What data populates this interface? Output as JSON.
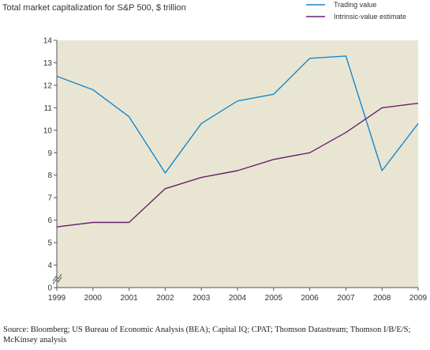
{
  "chart_data": {
    "type": "line",
    "title": "Total market capitalization for S&P 500, $ trillion",
    "x": [
      "1999",
      "2000",
      "2001",
      "2002",
      "2003",
      "2004",
      "2005",
      "2006",
      "2007",
      "2008",
      "2009"
    ],
    "series": [
      {
        "name": "Trading value",
        "color": "#1a86c8",
        "values": [
          12.4,
          11.8,
          10.6,
          8.1,
          10.3,
          11.3,
          11.6,
          13.2,
          13.3,
          8.2,
          10.3
        ]
      },
      {
        "name": "Intrinsic-value estimate",
        "color": "#6b1f6e",
        "values": [
          5.7,
          5.9,
          5.9,
          7.4,
          7.9,
          8.2,
          8.7,
          9.0,
          9.9,
          11.0,
          11.2
        ]
      }
    ],
    "y_ticks": [
      "0",
      "4",
      "5",
      "6",
      "7",
      "8",
      "9",
      "10",
      "11",
      "12",
      "13",
      "14"
    ],
    "y_tick_values": [
      0,
      4,
      5,
      6,
      7,
      8,
      9,
      10,
      11,
      12,
      13,
      14
    ],
    "ylim": [
      3,
      14
    ],
    "axis_break": "0-4",
    "legend_position": "top-right",
    "grid": false,
    "background_color": "#e8e6d3",
    "source": "Source: Bloomberg; US Bureau of Economic Analysis (BEA); Capital IQ; CPAT; Thomson Datastream; Thomson I/B/E/S; McKinsey analysis"
  }
}
